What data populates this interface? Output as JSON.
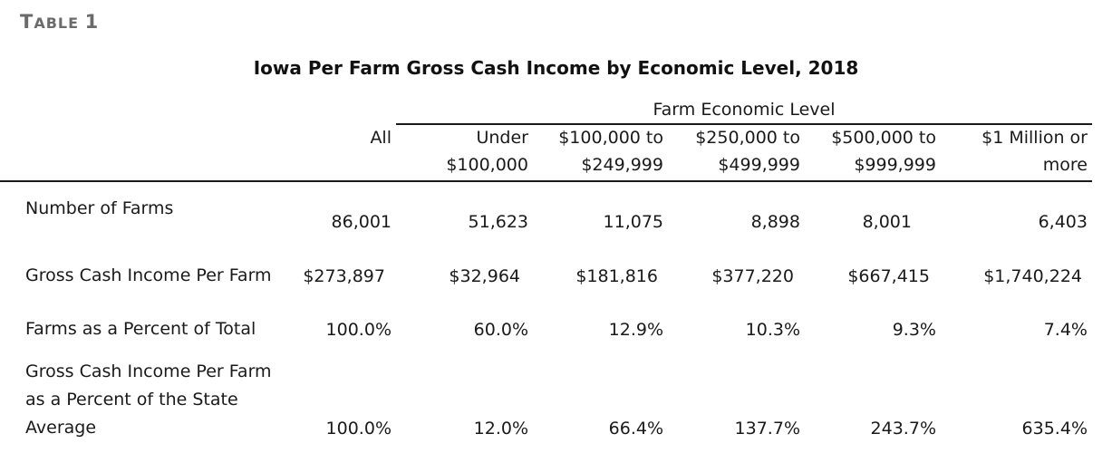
{
  "table_label": {
    "first": "T",
    "rest": "ABLE",
    "number": "1"
  },
  "title": "Iowa Per Farm Gross Cash Income by Economic Level, 2018",
  "group_header": "Farm Economic Level",
  "columns": [
    {
      "line1": "",
      "line2": "All"
    },
    {
      "line1": "Under",
      "line2": "$100,000"
    },
    {
      "line1": "$100,000 to",
      "line2": "$249,999"
    },
    {
      "line1": "$250,000 to",
      "line2": "$499,999"
    },
    {
      "line1": "$500,000 to",
      "line2": "$999,999"
    },
    {
      "line1": "$1 Million or",
      "line2": "more"
    }
  ],
  "rows": [
    {
      "label_lines": [
        "Number of Farms"
      ],
      "values": [
        "86,001",
        "51,623",
        "11,075",
        "8,898",
        "8,001",
        "6,403"
      ]
    },
    {
      "label_lines": [
        "Gross Cash Income Per Farm"
      ],
      "values": [
        "$273,897",
        "$32,964",
        "$181,816",
        "$377,220",
        "$667,415",
        "$1,740,224"
      ]
    },
    {
      "label_lines": [
        "Farms as a Percent of Total"
      ],
      "values": [
        "100.0%",
        "60.0%",
        "12.9%",
        "10.3%",
        "9.3%",
        "7.4%"
      ]
    },
    {
      "label_lines": [
        "Gross Cash Income Per Farm",
        "as a Percent of the State",
        "Average"
      ],
      "values": [
        "100.0%",
        "12.0%",
        "66.4%",
        "137.7%",
        "243.7%",
        "635.4%"
      ]
    }
  ]
}
